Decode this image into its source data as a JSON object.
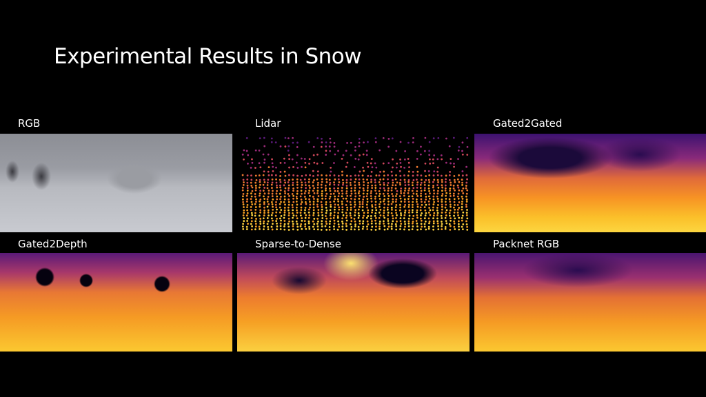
{
  "slide": {
    "title": "Experimental Results in Snow"
  },
  "panels": [
    {
      "label": "RGB"
    },
    {
      "label": "Lidar"
    },
    {
      "label": "Gated2Gated"
    },
    {
      "label": "Gated2Depth"
    },
    {
      "label": "Sparse-to-Dense"
    },
    {
      "label": "Packnet RGB"
    }
  ]
}
